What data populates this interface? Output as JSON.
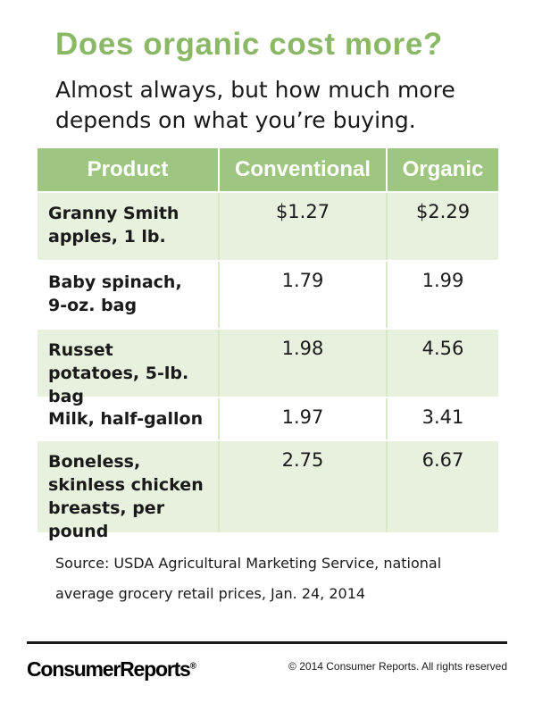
{
  "header": {
    "title": "Does organic cost more?",
    "subtitle": "Almost always, but how much more depends on what you’re buying."
  },
  "table": {
    "columns": [
      "Product",
      "Conventional",
      "Organic"
    ],
    "rows": [
      {
        "product": "Granny Smith apples, 1 lb.",
        "conventional": "$1.27",
        "organic": "$2.29"
      },
      {
        "product": "Baby spinach, 9-oz. bag",
        "conventional": "1.79",
        "organic": "1.99"
      },
      {
        "product": "Russet potatoes, 5-lb. bag",
        "conventional": "1.98",
        "organic": "4.56"
      },
      {
        "product": "Milk, half-gallon",
        "conventional": "1.97",
        "organic": "3.41"
      },
      {
        "product": "Boneless, skinless chicken breasts, per pound",
        "conventional": "2.75",
        "organic": "6.67"
      }
    ]
  },
  "source": "Source: USDA Agricultural Marketing Service, national average grocery retail prices, Jan. 24, 2014",
  "footer": {
    "logo": "ConsumerReports",
    "logo_mark": "®",
    "copyright": "© 2014 Consumer Reports. All rights reserved"
  },
  "colors": {
    "title_green": "#8ab866",
    "header_green": "#9ec681",
    "row_shade": "#e7f1dd"
  }
}
